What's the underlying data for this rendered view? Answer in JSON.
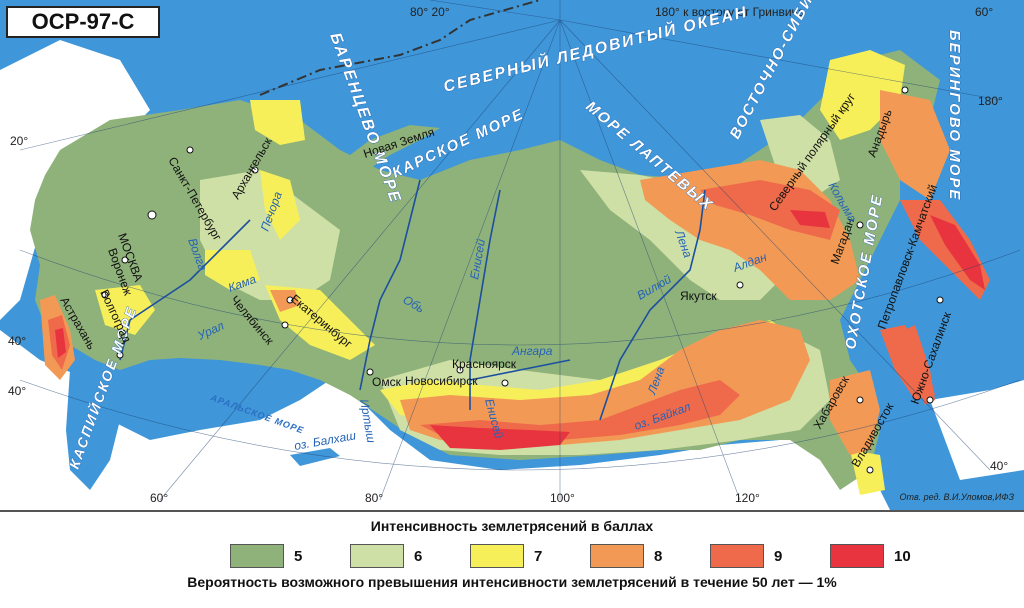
{
  "badge": "ОСР-97-С",
  "credit": "Отв. ред. В.И.Уломов,ИФЗ",
  "meridians": {
    "m80_20": "80° 20°",
    "east": "180° к востоку от Гринвича",
    "m60_top": "60°",
    "m180_right": "180°",
    "m20_left": "20°",
    "m40_left": "40°",
    "m40_left2": "40°",
    "m40_right": "40°",
    "m60_bottom": "60°",
    "m80_bottom": "80°",
    "m100_bottom": "100°",
    "m120_bottom": "120°"
  },
  "seas": {
    "barents": "БАРЕНЦЕВО МОРЕ",
    "arctic": "СЕВЕРНЫЙ ЛЕДОВИТЫЙ ОКЕАН",
    "kara": "КАРСКОЕ МОРЕ",
    "laptev": "МОРЕ ЛАПТЕВЫХ",
    "eastsib": "ВОСТОЧНО-СИБИРСКОЕ МОРЕ",
    "bering": "БЕРИНГОВО МОРЕ",
    "okhotsk": "ОХОТСКОЕ МОРЕ",
    "caspian": "КАСПИЙСКОЕ МОРЕ",
    "aral": "АРАЛЬСКОЕ МОРЕ"
  },
  "cities": {
    "novaya_zemlya": "Новая Земля",
    "spb": "Санкт-Петербург",
    "arkhangelsk": "Архангельск",
    "moscow": "МОСКВА",
    "voronezh": "Воронеж",
    "volgograd": "Волгоград",
    "astrakhan": "Астрахань",
    "chelyabinsk": "Челябинск",
    "ekaterinburg": "Екатеринбург",
    "omsk": "Омск",
    "novosibirsk": "Новосибирск",
    "krasnoyarsk": "Красноярск",
    "yakutsk": "Якутск",
    "magadan": "Магадан",
    "anadyr": "Анадырь",
    "petropavlovsk": "Петропавловск-Камчатский",
    "yuzhno": "Южно-Сахалинск",
    "khabarovsk": "Хабаровск",
    "vladivostok": "Владивосток",
    "polar_circle": "Северный полярный круг"
  },
  "rivers": {
    "volga": "Волга",
    "pechora": "Печора",
    "kama": "Кама",
    "ural": "Урал",
    "ob": "Обь",
    "irtysh": "Иртыш",
    "yenisei": "Енисей",
    "yenisei2": "Енисей",
    "angara": "Ангара",
    "lena": "Лена",
    "lena2": "Лена",
    "vilyuy": "Вилюй",
    "aldan": "Алдан",
    "kolyma": "Колыма",
    "baikal": "оз. Байкал",
    "balkhash": "оз. Балхаш"
  },
  "legend": {
    "title": "Интенсивность землетрясений в баллах",
    "items": [
      {
        "label": "5",
        "color": "#8fb27a"
      },
      {
        "label": "6",
        "color": "#cfe0a6"
      },
      {
        "label": "7",
        "color": "#f7ef5a"
      },
      {
        "label": "8",
        "color": "#f29a55"
      },
      {
        "label": "9",
        "color": "#ef6a4a"
      },
      {
        "label": "10",
        "color": "#e8343f"
      }
    ],
    "note": "Вероятность возможного превышения интенсивности землетрясений в течение 50 лет — 1%"
  }
}
